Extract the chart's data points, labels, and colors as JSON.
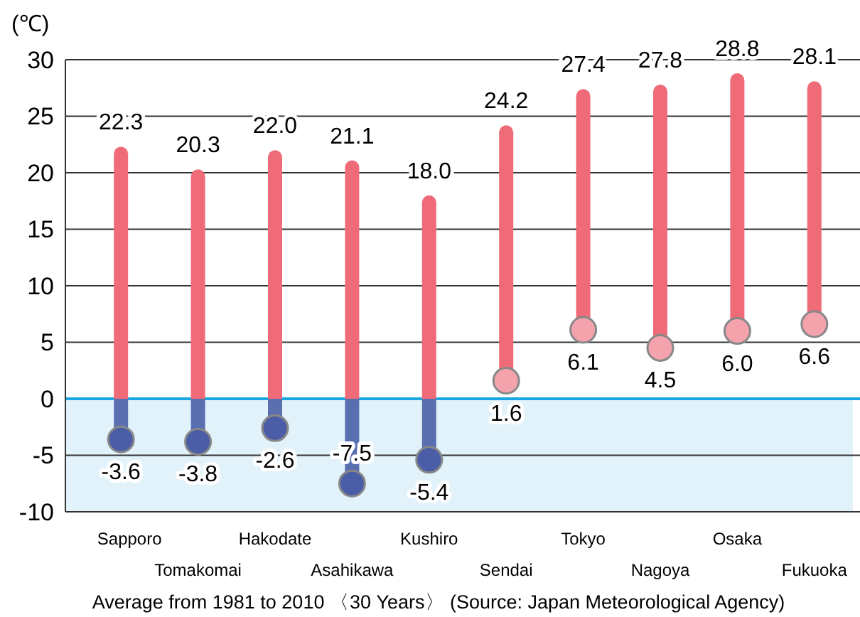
{
  "chart_data": {
    "type": "bar",
    "ylabel": "(℃)",
    "categories": [
      "Sapporo",
      "Tomakomai",
      "Hakodate",
      "Asahikawa",
      "Kushiro",
      "Sendai",
      "Tokyo",
      "Nagoya",
      "Osaka",
      "Fukuoka"
    ],
    "base": [
      -3.6,
      -3.8,
      -2.6,
      -7.5,
      -5.4,
      1.6,
      6.1,
      4.5,
      6.0,
      6.6
    ],
    "values": [
      25.9,
      24.1,
      24.6,
      28.6,
      23.4,
      22.6,
      21.3,
      23.3,
      22.8,
      21.5
    ],
    "color": "#ef6b78",
    "ylim": [
      -10,
      30
    ],
    "yticks": [
      -10,
      -5,
      0,
      5,
      10,
      15,
      20,
      25,
      30
    ],
    "grid": "y",
    "ref_lines": [
      {
        "axis": "y",
        "value": 0,
        "color": "#1aa6e0"
      }
    ],
    "bands": [
      {
        "axis": "y",
        "from": -10,
        "to": 0,
        "color": "#e1f2fa"
      }
    ],
    "annotations": [
      {
        "text": "22.3",
        "x": "Sapporo",
        "y": 22.3
      },
      {
        "text": "-3.6",
        "x": "Sapporo",
        "y": -3.6
      },
      {
        "text": "20.3",
        "x": "Tomakomai",
        "y": 20.3
      },
      {
        "text": "-3.8",
        "x": "Tomakomai",
        "y": -3.8
      },
      {
        "text": "22.0",
        "x": "Hakodate",
        "y": 22.0
      },
      {
        "text": "-2.6",
        "x": "Hakodate",
        "y": -2.6
      },
      {
        "text": "21.1",
        "x": "Asahikawa",
        "y": 21.1
      },
      {
        "text": "-7.5",
        "x": "Asahikawa",
        "y": -7.5
      },
      {
        "text": "18.0",
        "x": "Kushiro",
        "y": 18.0
      },
      {
        "text": "-5.4",
        "x": "Kushiro",
        "y": -5.4
      },
      {
        "text": "24.2",
        "x": "Sendai",
        "y": 24.2
      },
      {
        "text": "1.6",
        "x": "Sendai",
        "y": 1.6
      },
      {
        "text": "27.4",
        "x": "Tokyo",
        "y": 27.4
      },
      {
        "text": "6.1",
        "x": "Tokyo",
        "y": 6.1
      },
      {
        "text": "27.8",
        "x": "Nagoya",
        "y": 27.8
      },
      {
        "text": "4.5",
        "x": "Nagoya",
        "y": 4.5
      },
      {
        "text": "28.8",
        "x": "Osaka",
        "y": 28.8
      },
      {
        "text": "6.0",
        "x": "Osaka",
        "y": 6.0
      },
      {
        "text": "28.1",
        "x": "Fukuoka",
        "y": 28.1
      },
      {
        "text": "6.6",
        "x": "Fukuoka",
        "y": 6.6
      },
      "Average from 1981 to 2010 〈30 Years〉 (Source: Japan Meteorological Agency)"
    ]
  }
}
